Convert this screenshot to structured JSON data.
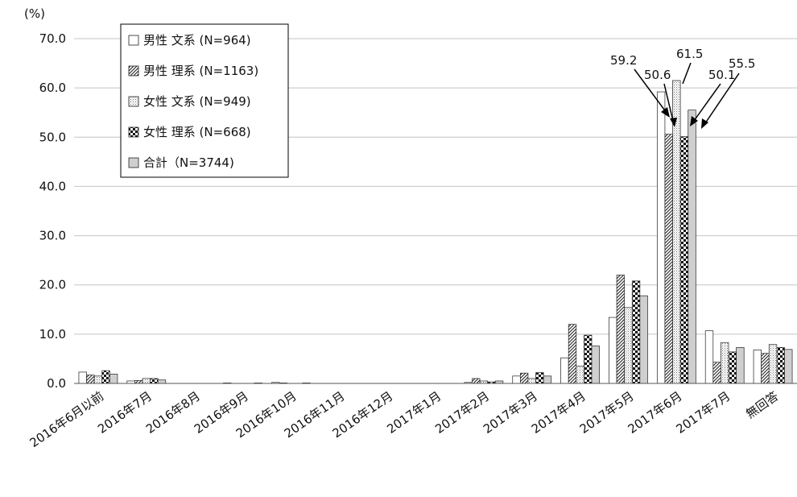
{
  "chart_data": {
    "type": "bar",
    "unit_label": "(%)",
    "categories": [
      "2016年6月以前",
      "2016年7月",
      "2016年8月",
      "2016年9月",
      "2016年10月",
      "2016年11月",
      "2016年12月",
      "2017年1月",
      "2017年2月",
      "2017年3月",
      "2017年4月",
      "2017年5月",
      "2017年6月",
      "2017年7月",
      "無回答"
    ],
    "ylim": [
      0,
      70
    ],
    "yticks": [
      "0.0",
      "10.0",
      "20.0",
      "30.0",
      "40.0",
      "50.0",
      "60.0",
      "70.0"
    ],
    "grid": true,
    "legend_position": "top-left",
    "series": [
      {
        "name": "男性 文系 (N=964)",
        "pattern": "plain",
        "values": [
          2.3,
          0.5,
          0.0,
          0.1,
          0.2,
          0.0,
          0.0,
          0.0,
          0.2,
          1.5,
          5.2,
          13.4,
          59.2,
          10.7,
          6.8
        ]
      },
      {
        "name": "男性 理系 (N=1163)",
        "pattern": "diagonal",
        "values": [
          1.7,
          0.6,
          0.0,
          0.0,
          0.1,
          0.0,
          0.0,
          0.0,
          1.0,
          2.1,
          12.0,
          22.0,
          50.6,
          4.3,
          6.1
        ]
      },
      {
        "name": "女性 文系 (N=949)",
        "pattern": "dots",
        "values": [
          1.5,
          1.0,
          0.0,
          0.0,
          0.0,
          0.0,
          0.0,
          0.0,
          0.5,
          1.0,
          3.5,
          15.4,
          61.5,
          8.3,
          7.9
        ]
      },
      {
        "name": "女性 理系 (N=668)",
        "pattern": "checker",
        "values": [
          2.6,
          1.0,
          0.0,
          0.0,
          0.0,
          0.0,
          0.0,
          0.0,
          0.3,
          2.2,
          9.8,
          20.8,
          50.1,
          6.4,
          7.3
        ]
      },
      {
        "name": "合計（N=3744)",
        "pattern": "gray",
        "values": [
          1.9,
          0.7,
          0.0,
          0.1,
          0.1,
          0.0,
          0.0,
          0.0,
          0.5,
          1.5,
          7.6,
          17.8,
          55.5,
          7.3,
          6.9
        ]
      }
    ],
    "annotations": [
      "59.2",
      "50.6",
      "61.5",
      "50.1",
      "55.5"
    ]
  }
}
